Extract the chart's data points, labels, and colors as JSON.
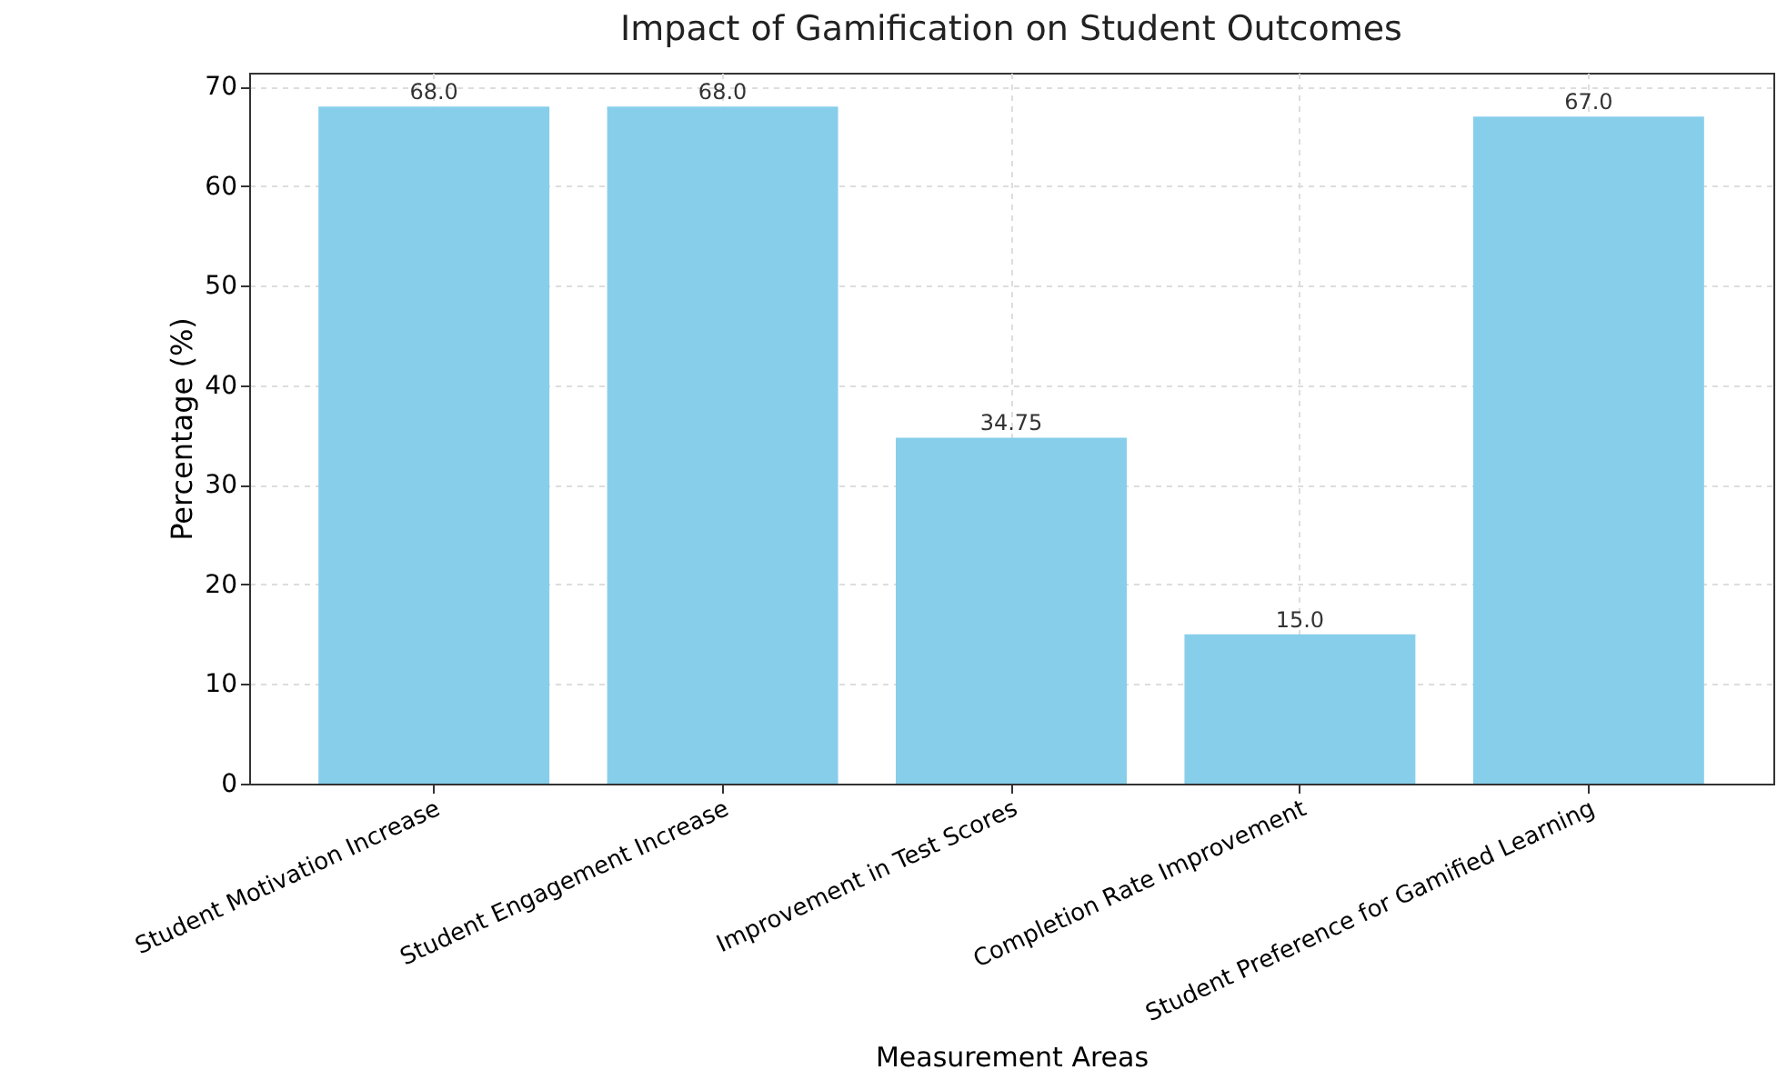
{
  "chart_data": {
    "type": "bar",
    "title": "Impact of Gamification on Student Outcomes",
    "xlabel": "Measurement Areas",
    "ylabel": "Percentage (%)",
    "categories": [
      "Student Motivation Increase",
      "Student Engagement Increase",
      "Improvement in Test Scores",
      "Completion Rate Improvement",
      "Student Preference for Gamified Learning"
    ],
    "values": [
      68,
      68,
      34.75,
      15,
      67
    ],
    "value_labels": [
      "68.0",
      "68.0",
      "34.75",
      "15.0",
      "67.0"
    ],
    "color": "#87ceeb",
    "ylim": [
      0,
      71.4
    ],
    "yticks": [
      0,
      10,
      20,
      30,
      40,
      50,
      60,
      70
    ],
    "grid": true
  }
}
